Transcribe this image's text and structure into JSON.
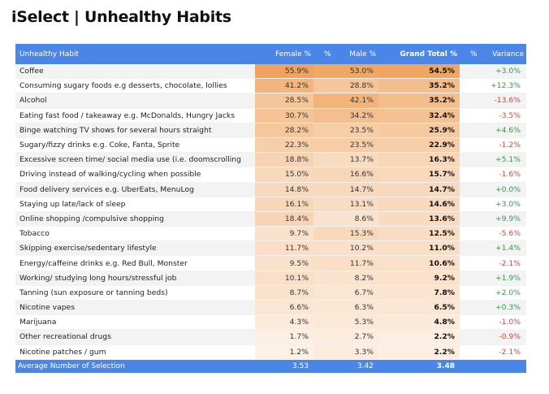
{
  "title": "iSelect | Unhealthy Habits",
  "headers": {
    "habit": "Unhealthy Habit",
    "female": "Female %",
    "pct_sep": "%",
    "male": "Male %",
    "total": "Grand Total %",
    "pct_sep2": "%",
    "variance": "Variance"
  },
  "rows": [
    {
      "habit": "Coffee",
      "female": "55.9%",
      "male": "53.0%",
      "total": "54.5%",
      "variance": "+3.0%"
    },
    {
      "habit": "Consuming sugary foods e.g desserts, chocolate, lollies",
      "female": "41.2%",
      "male": "28.8%",
      "total": "35.2%",
      "variance": "+12.3%"
    },
    {
      "habit": "Alcohol",
      "female": "28.5%",
      "male": "42.1%",
      "total": "35.2%",
      "variance": "-13.6%"
    },
    {
      "habit": "Eating fast food / takeaway e.g. McDonalds, Hungry Jacks",
      "female": "30.7%",
      "male": "34.2%",
      "total": "32.4%",
      "variance": "-3.5%"
    },
    {
      "habit": "Binge watching TV shows for several hours straight",
      "female": "28.2%",
      "male": "23.5%",
      "total": "25.9%",
      "variance": "+4.6%"
    },
    {
      "habit": "Sugary/fizzy drinks e.g. Coke, Fanta, Sprite",
      "female": "22.3%",
      "male": "23.5%",
      "total": "22.9%",
      "variance": "-1.2%"
    },
    {
      "habit": "Excessive screen time/ social media use (i.e. doomscrolling",
      "female": "18.8%",
      "male": "13.7%",
      "total": "16.3%",
      "variance": "+5.1%"
    },
    {
      "habit": "Driving instead of walking/cycling when possible",
      "female": "15.0%",
      "male": "16.6%",
      "total": "15.7%",
      "variance": "-1.6%"
    },
    {
      "habit": "Food delivery services e.g. UberEats, MenuLog",
      "female": "14.8%",
      "male": "14.7%",
      "total": "14.7%",
      "variance": "+0.0%"
    },
    {
      "habit": "Staying up late/lack of sleep",
      "female": "16.1%",
      "male": "13.1%",
      "total": "14.6%",
      "variance": "+3.0%"
    },
    {
      "habit": "Online shopping /compulsive shopping",
      "female": "18.4%",
      "male": "8.6%",
      "total": "13.6%",
      "variance": "+9.9%"
    },
    {
      "habit": "Tobacco",
      "female": "9.7%",
      "male": "15.3%",
      "total": "12.5%",
      "variance": "-5.6%"
    },
    {
      "habit": "Skipping exercise/sedentary lifestyle",
      "female": "11.7%",
      "male": "10.2%",
      "total": "11.0%",
      "variance": "+1.4%"
    },
    {
      "habit": "Energy/caffeine drinks e.g. Red Bull, Monster",
      "female": "9.5%",
      "male": "11.7%",
      "total": "10.6%",
      "variance": "-2.1%"
    },
    {
      "habit": "Working/ studying long hours/stressful job",
      "female": "10.1%",
      "male": "8.2%",
      "total": "9.2%",
      "variance": "+1.9%"
    },
    {
      "habit": "Tanning (sun exposure or tanning beds)",
      "female": "8.7%",
      "male": "6.7%",
      "total": "7.8%",
      "variance": "+2.0%"
    },
    {
      "habit": "Nicotine vapes",
      "female": "6.6%",
      "male": "6.3%",
      "total": "6.5%",
      "variance": "+0.3%"
    },
    {
      "habit": "Marijuana",
      "female": "4.3%",
      "male": "5.3%",
      "total": "4.8%",
      "variance": "-1.0%"
    },
    {
      "habit": "Other recreational drugs",
      "female": "1.7%",
      "male": "2.7%",
      "total": "2.2%",
      "variance": "-0.9%"
    },
    {
      "habit": "Nicotine patches / gum",
      "female": "1.2%",
      "male": "3.3%",
      "total": "2.2%",
      "variance": "-2.1%"
    }
  ],
  "footer": {
    "label": "Average Number of Selection",
    "female": "3.53",
    "male": "3.42",
    "total": "3.48"
  },
  "colors": {
    "header": "#4a86e8",
    "heat_high": "#f0a35e",
    "heat_low": "#fdf3ea",
    "positive": "#2e9b46",
    "negative": "#d2453a"
  }
}
